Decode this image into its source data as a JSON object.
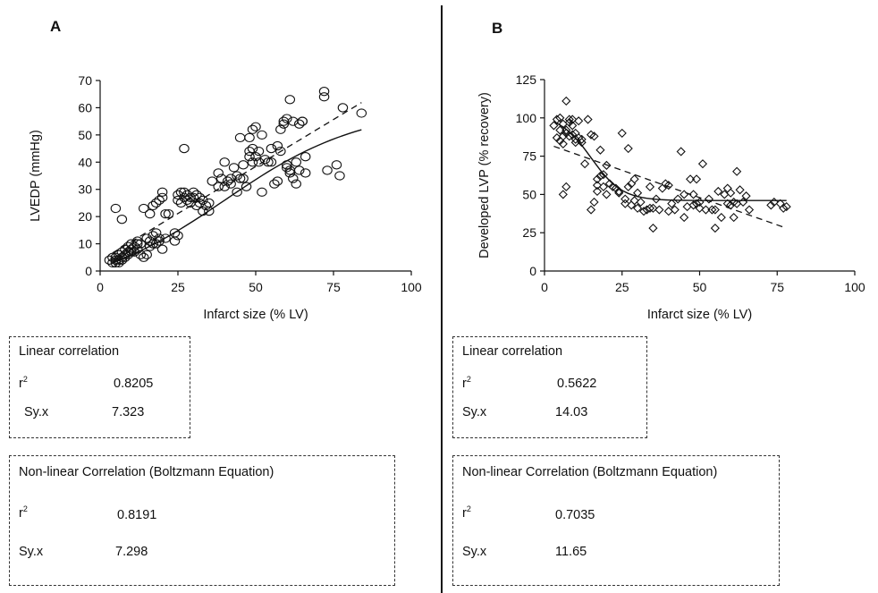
{
  "figure": {
    "panels": [
      {
        "letter": "A",
        "stats": [
          {
            "title": "Linear correlation",
            "r2_label": "r",
            "r2_sup": "2",
            "r2": "0.8205",
            "syx_label": "Sy.x",
            "syx": "7.323"
          },
          {
            "title": "Non-linear Correlation (Boltzmann Equation)",
            "r2_label": "r",
            "r2_sup": "2",
            "r2": "0.8191",
            "syx_label": "Sy.x",
            "syx": "7.298"
          }
        ]
      },
      {
        "letter": "B",
        "stats": [
          {
            "title": "Linear correlation",
            "r2_label": "r",
            "r2_sup": "2",
            "r2": "0.5622",
            "syx_label": "Sy.x",
            "syx": "14.03"
          },
          {
            "title": "Non-linear Correlation (Boltzmann Equation)",
            "r2_label": "r",
            "r2_sup": "2",
            "r2": "0.7035",
            "syx_label": "Sy.x",
            "syx": "11.65"
          }
        ]
      }
    ]
  },
  "chart_data": [
    {
      "type": "scatter",
      "xlabel": "Infarct size (% LV)",
      "ylabel": "LVEDP (mmHg)",
      "xlim": [
        0,
        100
      ],
      "ylim": [
        0,
        70
      ],
      "xticks": [
        0,
        25,
        50,
        75,
        100
      ],
      "yticks": [
        0,
        10,
        20,
        30,
        40,
        50,
        60,
        70
      ],
      "marker": "circle",
      "x": [
        3,
        4,
        4,
        5,
        5,
        5,
        6,
        6,
        6,
        7,
        7,
        7,
        8,
        8,
        8,
        9,
        9,
        9,
        10,
        10,
        10,
        11,
        11,
        12,
        12,
        12,
        13,
        13,
        5,
        7,
        14,
        14,
        15,
        15,
        16,
        16,
        16,
        17,
        17,
        17,
        18,
        18,
        18,
        19,
        19,
        19,
        20,
        20,
        20,
        21,
        21,
        22,
        24,
        24,
        25,
        25,
        25,
        26,
        26,
        27,
        27,
        27,
        28,
        28,
        29,
        29,
        30,
        30,
        31,
        31,
        32,
        32,
        33,
        33,
        34,
        35,
        35,
        36,
        38,
        38,
        39,
        40,
        40,
        41,
        42,
        42,
        43,
        44,
        44,
        45,
        45,
        46,
        46,
        47,
        48,
        48,
        48,
        49,
        49,
        49,
        50,
        50,
        51,
        51,
        52,
        52,
        53,
        54,
        55,
        55,
        56,
        57,
        57,
        58,
        58,
        59,
        59,
        60,
        60,
        60,
        61,
        61,
        61,
        62,
        62,
        63,
        63,
        64,
        64,
        65,
        65,
        66,
        66,
        72,
        72,
        73,
        76,
        77,
        78,
        84
      ],
      "y": [
        4,
        5,
        3,
        4,
        3,
        5,
        4,
        6,
        3,
        5,
        7,
        4,
        5,
        8,
        6,
        6,
        9,
        7,
        7,
        10,
        8,
        9,
        7,
        11,
        8,
        10,
        10,
        6,
        23,
        19,
        5,
        23,
        6,
        12,
        11,
        9,
        21,
        10,
        13,
        24,
        10,
        14,
        25,
        12,
        11,
        26,
        8,
        27,
        29,
        12,
        21,
        21,
        11,
        14,
        28,
        26,
        13,
        25,
        29,
        45,
        27,
        29,
        28,
        26,
        27,
        25,
        27,
        29,
        28,
        24,
        27,
        25,
        26,
        22,
        24,
        25,
        22,
        33,
        36,
        31,
        34,
        40,
        31,
        33,
        32,
        34,
        38,
        29,
        35,
        49,
        34,
        34,
        39,
        31,
        42,
        49,
        44,
        45,
        52,
        40,
        42,
        53,
        44,
        40,
        29,
        50,
        41,
        40,
        45,
        40,
        32,
        46,
        33,
        52,
        44,
        54,
        55,
        39,
        38,
        56,
        36,
        63,
        37,
        55,
        34,
        32,
        40,
        54,
        37,
        55,
        55,
        42,
        36,
        66,
        64,
        37,
        39,
        35,
        60,
        58
      ]
    },
    {
      "type": "scatter",
      "xlabel": "Infarct size (% LV)",
      "ylabel": "Developed LVP (% recovery)",
      "xlim": [
        0,
        100
      ],
      "ylim": [
        0,
        125
      ],
      "xticks": [
        0,
        25,
        50,
        75,
        100
      ],
      "yticks": [
        0,
        25,
        50,
        75,
        100,
        125
      ],
      "marker": "diamond",
      "x": [
        3,
        4,
        4,
        5,
        5,
        5,
        6,
        6,
        6,
        7,
        7,
        7,
        8,
        8,
        8,
        9,
        9,
        9,
        10,
        10,
        10,
        11,
        11,
        12,
        12,
        13,
        6,
        7,
        14,
        15,
        15,
        16,
        16,
        17,
        17,
        17,
        18,
        18,
        19,
        19,
        20,
        20,
        21,
        22,
        23,
        24,
        24,
        25,
        26,
        26,
        27,
        27,
        28,
        28,
        29,
        29,
        30,
        30,
        31,
        32,
        33,
        34,
        34,
        35,
        35,
        36,
        37,
        38,
        39,
        40,
        40,
        41,
        42,
        43,
        44,
        45,
        45,
        46,
        47,
        48,
        48,
        49,
        49,
        50,
        50,
        51,
        52,
        53,
        54,
        55,
        55,
        56,
        57,
        58,
        59,
        59,
        60,
        60,
        61,
        61,
        62,
        62,
        63,
        64,
        65,
        66,
        73,
        74,
        76,
        77,
        78
      ],
      "y": [
        95,
        99,
        87,
        100,
        85,
        92,
        96,
        88,
        83,
        90,
        111,
        92,
        99,
        88,
        97,
        95,
        99,
        89,
        90,
        86,
        84,
        87,
        98,
        86,
        84,
        70,
        50,
        55,
        99,
        40,
        89,
        45,
        88,
        60,
        52,
        56,
        79,
        62,
        63,
        55,
        50,
        69,
        57,
        55,
        54,
        52,
        51,
        90,
        47,
        44,
        55,
        80,
        43,
        57,
        46,
        60,
        41,
        51,
        45,
        39,
        40,
        55,
        41,
        41,
        28,
        47,
        40,
        54,
        57,
        39,
        56,
        44,
        40,
        47,
        78,
        50,
        35,
        42,
        60,
        50,
        43,
        44,
        60,
        41,
        45,
        70,
        40,
        47,
        40,
        28,
        40,
        52,
        35,
        50,
        44,
        54,
        51,
        43,
        35,
        45,
        44,
        65,
        53,
        45,
        49,
        40,
        43,
        45,
        44,
        41,
        42
      ]
    }
  ]
}
